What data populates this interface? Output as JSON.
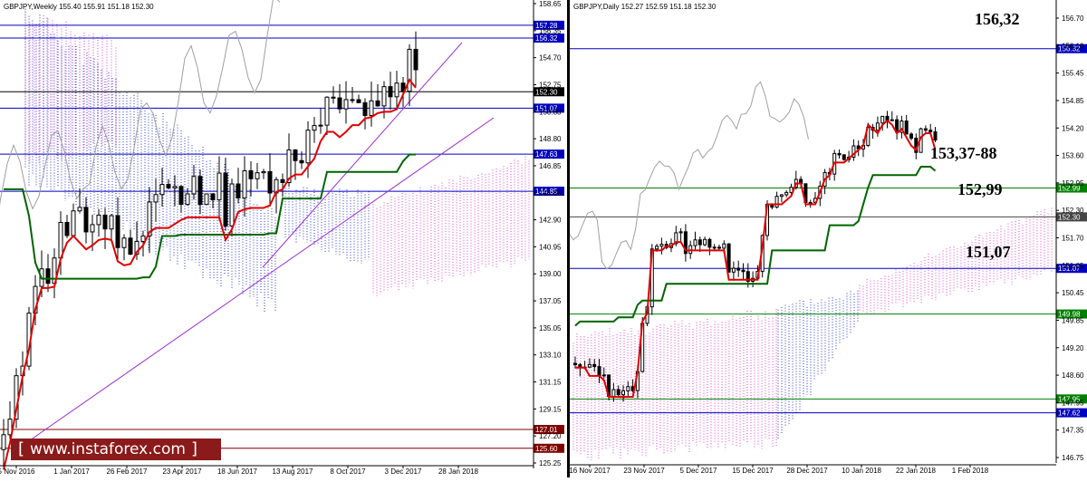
{
  "watermark": {
    "text": "www.instaforex.com",
    "open_bracket": "[",
    "close_bracket": "]"
  },
  "colors": {
    "tenkan": "#e00000",
    "kijun": "#006400",
    "chikou": "#a0a0a0",
    "level_blue": "#0000c0",
    "level_green": "#008000",
    "cloud_blue": "#2233cc",
    "cloud_pink": "#e040d0",
    "trend": "#9a2fd0",
    "level_maroon": "#800000"
  },
  "chart_data": [
    {
      "type": "candlestick",
      "header": "GBPJPY,Weekly  155.40 155.91 151.18 152.30",
      "ylim": [
        124.5,
        158.9
      ],
      "y_ticks": [
        "158.65",
        "156.35",
        "154.70",
        "152.75",
        "150.80",
        "148.80",
        "146.85",
        "144.85",
        "142.90",
        "140.95",
        "139.00",
        "137.05",
        "135.05",
        "133.10",
        "131.15",
        "129.15",
        "127.20",
        "125.25"
      ],
      "x_labels": [
        "5 Nov 2016",
        "1 Jan 2017",
        "26 Feb 2017",
        "23 Apr 2017",
        "18 Jun 2017",
        "13 Aug 2017",
        "8 Oct 2017",
        "3 Dec 2017",
        "28 Jan 2018"
      ],
      "levels": [
        {
          "label": "157.28",
          "value": 157.28,
          "color": "blue"
        },
        {
          "label": "156.32",
          "value": 156.32,
          "color": "blue"
        },
        {
          "label": "152.30",
          "value": 152.3,
          "color": "black"
        },
        {
          "label": "151.07",
          "value": 151.07,
          "color": "blue"
        },
        {
          "label": "147.63",
          "value": 147.63,
          "color": "blue"
        },
        {
          "label": "144.85",
          "value": 144.85,
          "color": "blue"
        },
        {
          "label": "127.01",
          "value": 127.01,
          "color": "maroon"
        },
        {
          "label": "125.60",
          "value": 125.6,
          "color": "maroon"
        }
      ],
      "lines": {
        "tenkan": [
          124.0,
          126,
          128.5,
          131,
          133,
          136,
          137.6,
          137.6,
          137.7,
          139.8,
          141.0,
          141.5,
          141.0,
          140.5,
          140.8,
          141.2,
          141.3,
          141.2,
          139.6,
          139.3,
          139.4,
          140.3,
          140.8,
          141.8,
          142.1,
          142.1,
          142.1,
          142.4,
          142.7,
          142.9,
          142.9,
          142.9,
          142.9,
          142.9,
          142.9,
          141.2,
          142.0,
          143.3,
          143.5,
          143.6,
          143.6,
          143.6,
          143.8,
          144.8,
          145.0,
          145.8,
          146.1,
          146.1,
          146.7,
          147.3,
          148.6,
          149.3,
          149.3,
          148.9,
          149.3,
          149.8,
          149.8,
          150.3,
          150.4,
          150.7,
          150.8,
          150.8,
          151.0,
          152.1,
          153.2,
          152.6
        ],
        "kijun": [
          145.0,
          145.0,
          145.0,
          145.0,
          143.0,
          139.5,
          138.3,
          138.3,
          138.3,
          138.3,
          138.3,
          138.3,
          138.3,
          138.3,
          138.3,
          138.3,
          138.3,
          138.3,
          138.3,
          138.3,
          138.3,
          138.3,
          138.4,
          138.4,
          139.2,
          141.5,
          141.5,
          141.5,
          141.6,
          141.6,
          141.6,
          141.6,
          141.6,
          141.6,
          141.6,
          141.6,
          141.6,
          141.6,
          141.6,
          141.6,
          141.6,
          141.6,
          141.7,
          141.7,
          144.3,
          144.3,
          144.3,
          144.3,
          144.3,
          144.3,
          144.3,
          146.3,
          146.3,
          146.3,
          146.3,
          146.3,
          146.3,
          146.3,
          146.3,
          146.3,
          146.3,
          146.3,
          146.3,
          147.1,
          147.6,
          147.6
        ]
      }
    },
    {
      "type": "candlestick",
      "header": "GBPJPY,Daily  152.27 152.59 151.18 152.30",
      "ylim": [
        146.55,
        157.05
      ],
      "y_ticks": [
        "156.70",
        "156.10",
        "155.45",
        "154.85",
        "154.20",
        "153.60",
        "152.95",
        "152.30",
        "151.70",
        "151.05",
        "150.45",
        "149.85",
        "149.20",
        "148.60",
        "147.95",
        "147.35",
        "146.75"
      ],
      "x_labels": [
        "16 Nov 2017",
        "23 Nov 2017",
        "5 Dec 2017",
        "15 Dec 2017",
        "28 Dec 2017",
        "10 Jan 2018",
        "22 Jan 2018",
        "1 Feb 2018"
      ],
      "levels": [
        {
          "label": "156.32",
          "value": 156.32,
          "color": "blue"
        },
        {
          "label": "152.99",
          "value": 152.99,
          "color": "green"
        },
        {
          "label": "152.30",
          "value": 152.3,
          "color": "gray"
        },
        {
          "label": "151.07",
          "value": 151.07,
          "color": "blue"
        },
        {
          "label": "149.98",
          "value": 149.98,
          "color": "green"
        },
        {
          "label": "147.95",
          "value": 147.95,
          "color": "green"
        },
        {
          "label": "147.62",
          "value": 147.62,
          "color": "blue"
        }
      ],
      "annotations": [
        "156,32",
        "153,37-88",
        "152,99",
        "151,07"
      ],
      "lines": {
        "tenkan": [
          148.7,
          148.7,
          148.7,
          148.5,
          148.5,
          148.5,
          148.4,
          148.0,
          148.0,
          148.0,
          148.0,
          148.0,
          148.0,
          148.6,
          149.8,
          150.0,
          151.5,
          151.5,
          151.5,
          151.6,
          151.6,
          151.7,
          151.7,
          151.5,
          151.5,
          151.5,
          151.5,
          151.5,
          151.5,
          151.5,
          151.5,
          151.5,
          150.8,
          150.8,
          150.8,
          150.8,
          150.8,
          150.8,
          150.8,
          151.6,
          152.6,
          152.6,
          152.6,
          152.6,
          152.7,
          152.8,
          153.1,
          153.1,
          152.6,
          152.6,
          152.6,
          152.9,
          153.2,
          153.3,
          153.6,
          153.6,
          153.6,
          153.7,
          153.8,
          153.9,
          154.0,
          154.5,
          154.4,
          154.3,
          154.5,
          154.6,
          154.5,
          154.3,
          154.4,
          154.2,
          154.0,
          153.9,
          154.2,
          154.3,
          154.3,
          153.9
        ],
        "kijun": [
          149.7,
          149.8,
          149.8,
          149.8,
          149.8,
          149.8,
          149.8,
          149.8,
          149.8,
          149.9,
          149.9,
          149.9,
          149.9,
          150.2,
          150.3,
          150.3,
          150.3,
          150.3,
          150.3,
          150.7,
          150.7,
          150.7,
          150.7,
          150.7,
          150.7,
          150.7,
          150.7,
          150.7,
          150.7,
          150.7,
          150.7,
          150.7,
          150.7,
          150.7,
          150.7,
          150.7,
          150.7,
          150.7,
          150.7,
          150.7,
          150.7,
          151.5,
          151.5,
          151.5,
          151.5,
          151.5,
          151.5,
          151.5,
          151.5,
          151.5,
          151.5,
          151.5,
          151.5,
          152.1,
          152.1,
          152.1,
          152.1,
          152.1,
          152.1,
          152.2,
          152.6,
          153.0,
          153.3,
          153.3,
          153.3,
          153.3,
          153.3,
          153.3,
          153.3,
          153.3,
          153.3,
          153.3,
          153.5,
          153.5,
          153.5,
          153.4
        ]
      }
    }
  ]
}
